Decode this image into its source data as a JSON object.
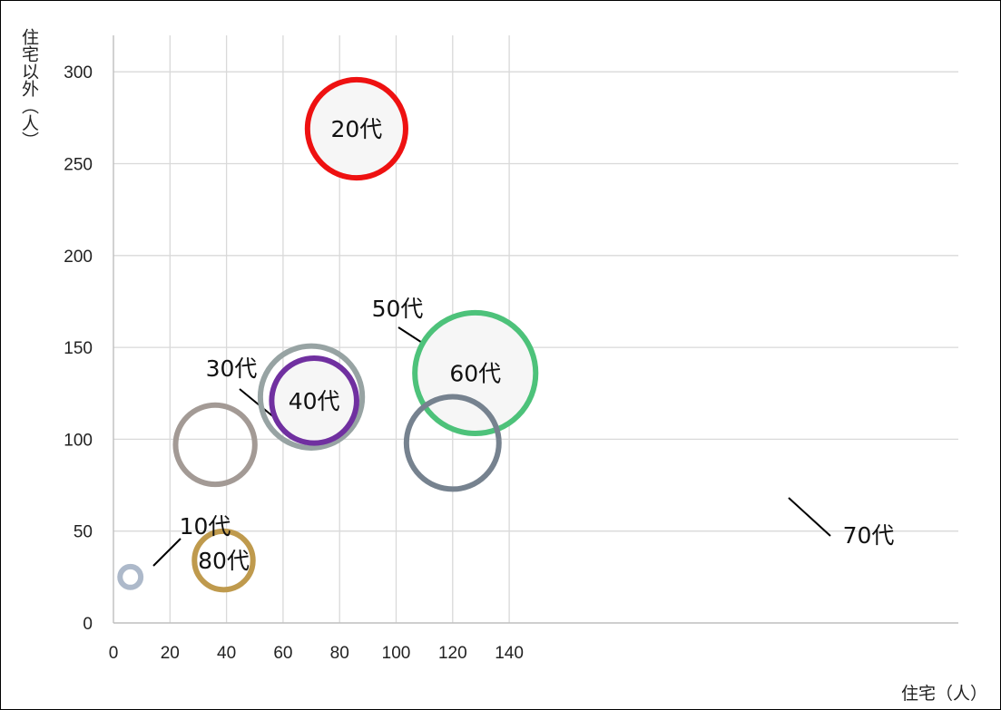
{
  "chart_data": {
    "type": "bubble",
    "title": "",
    "xlabel": "住宅（人）",
    "ylabel": "住宅以外（人）",
    "xlim": [
      0,
      150
    ],
    "ylim": [
      0,
      320
    ],
    "x_ticks": [
      0,
      20,
      40,
      60,
      80,
      100,
      120,
      140
    ],
    "y_ticks": [
      0,
      50,
      100,
      150,
      200,
      250,
      300
    ],
    "grid": true,
    "legend": "none",
    "points": [
      {
        "label": "10代",
        "x": 6,
        "y": 25,
        "size": 2.2,
        "color": "#adb9ca",
        "fill": "none",
        "label_pos": "outside"
      },
      {
        "label": "20代",
        "x": 86,
        "y": 269,
        "size": 10.4,
        "color": "#ee1111",
        "fill": "#f6f6f6",
        "label_pos": "inside"
      },
      {
        "label": "30代",
        "x": 36,
        "y": 97,
        "size": 8.4,
        "color": "#a39a95",
        "fill": "none",
        "label_pos": "outside"
      },
      {
        "label": "50代",
        "x": 70,
        "y": 123,
        "size": 10.8,
        "color": "#97a3a3",
        "fill": "none",
        "label_pos": "outside"
      },
      {
        "label": "40代",
        "x": 71,
        "y": 121,
        "size": 9.0,
        "color": "#7030a0",
        "fill": "#f6f6f6",
        "label_pos": "inside"
      },
      {
        "label": "60代",
        "x": 128,
        "y": 136,
        "size": 12.8,
        "color": "#4dc27a",
        "fill": "#f6f6f6",
        "label_pos": "inside"
      },
      {
        "label": "70代",
        "x": 120,
        "y": 98,
        "size": 9.8,
        "color": "#76828f",
        "fill": "none",
        "label_pos": "outside"
      },
      {
        "label": "80代",
        "x": 39,
        "y": 34,
        "size": 6.2,
        "color": "#bf9a4d",
        "fill": "none",
        "label_pos": "inside"
      }
    ]
  }
}
